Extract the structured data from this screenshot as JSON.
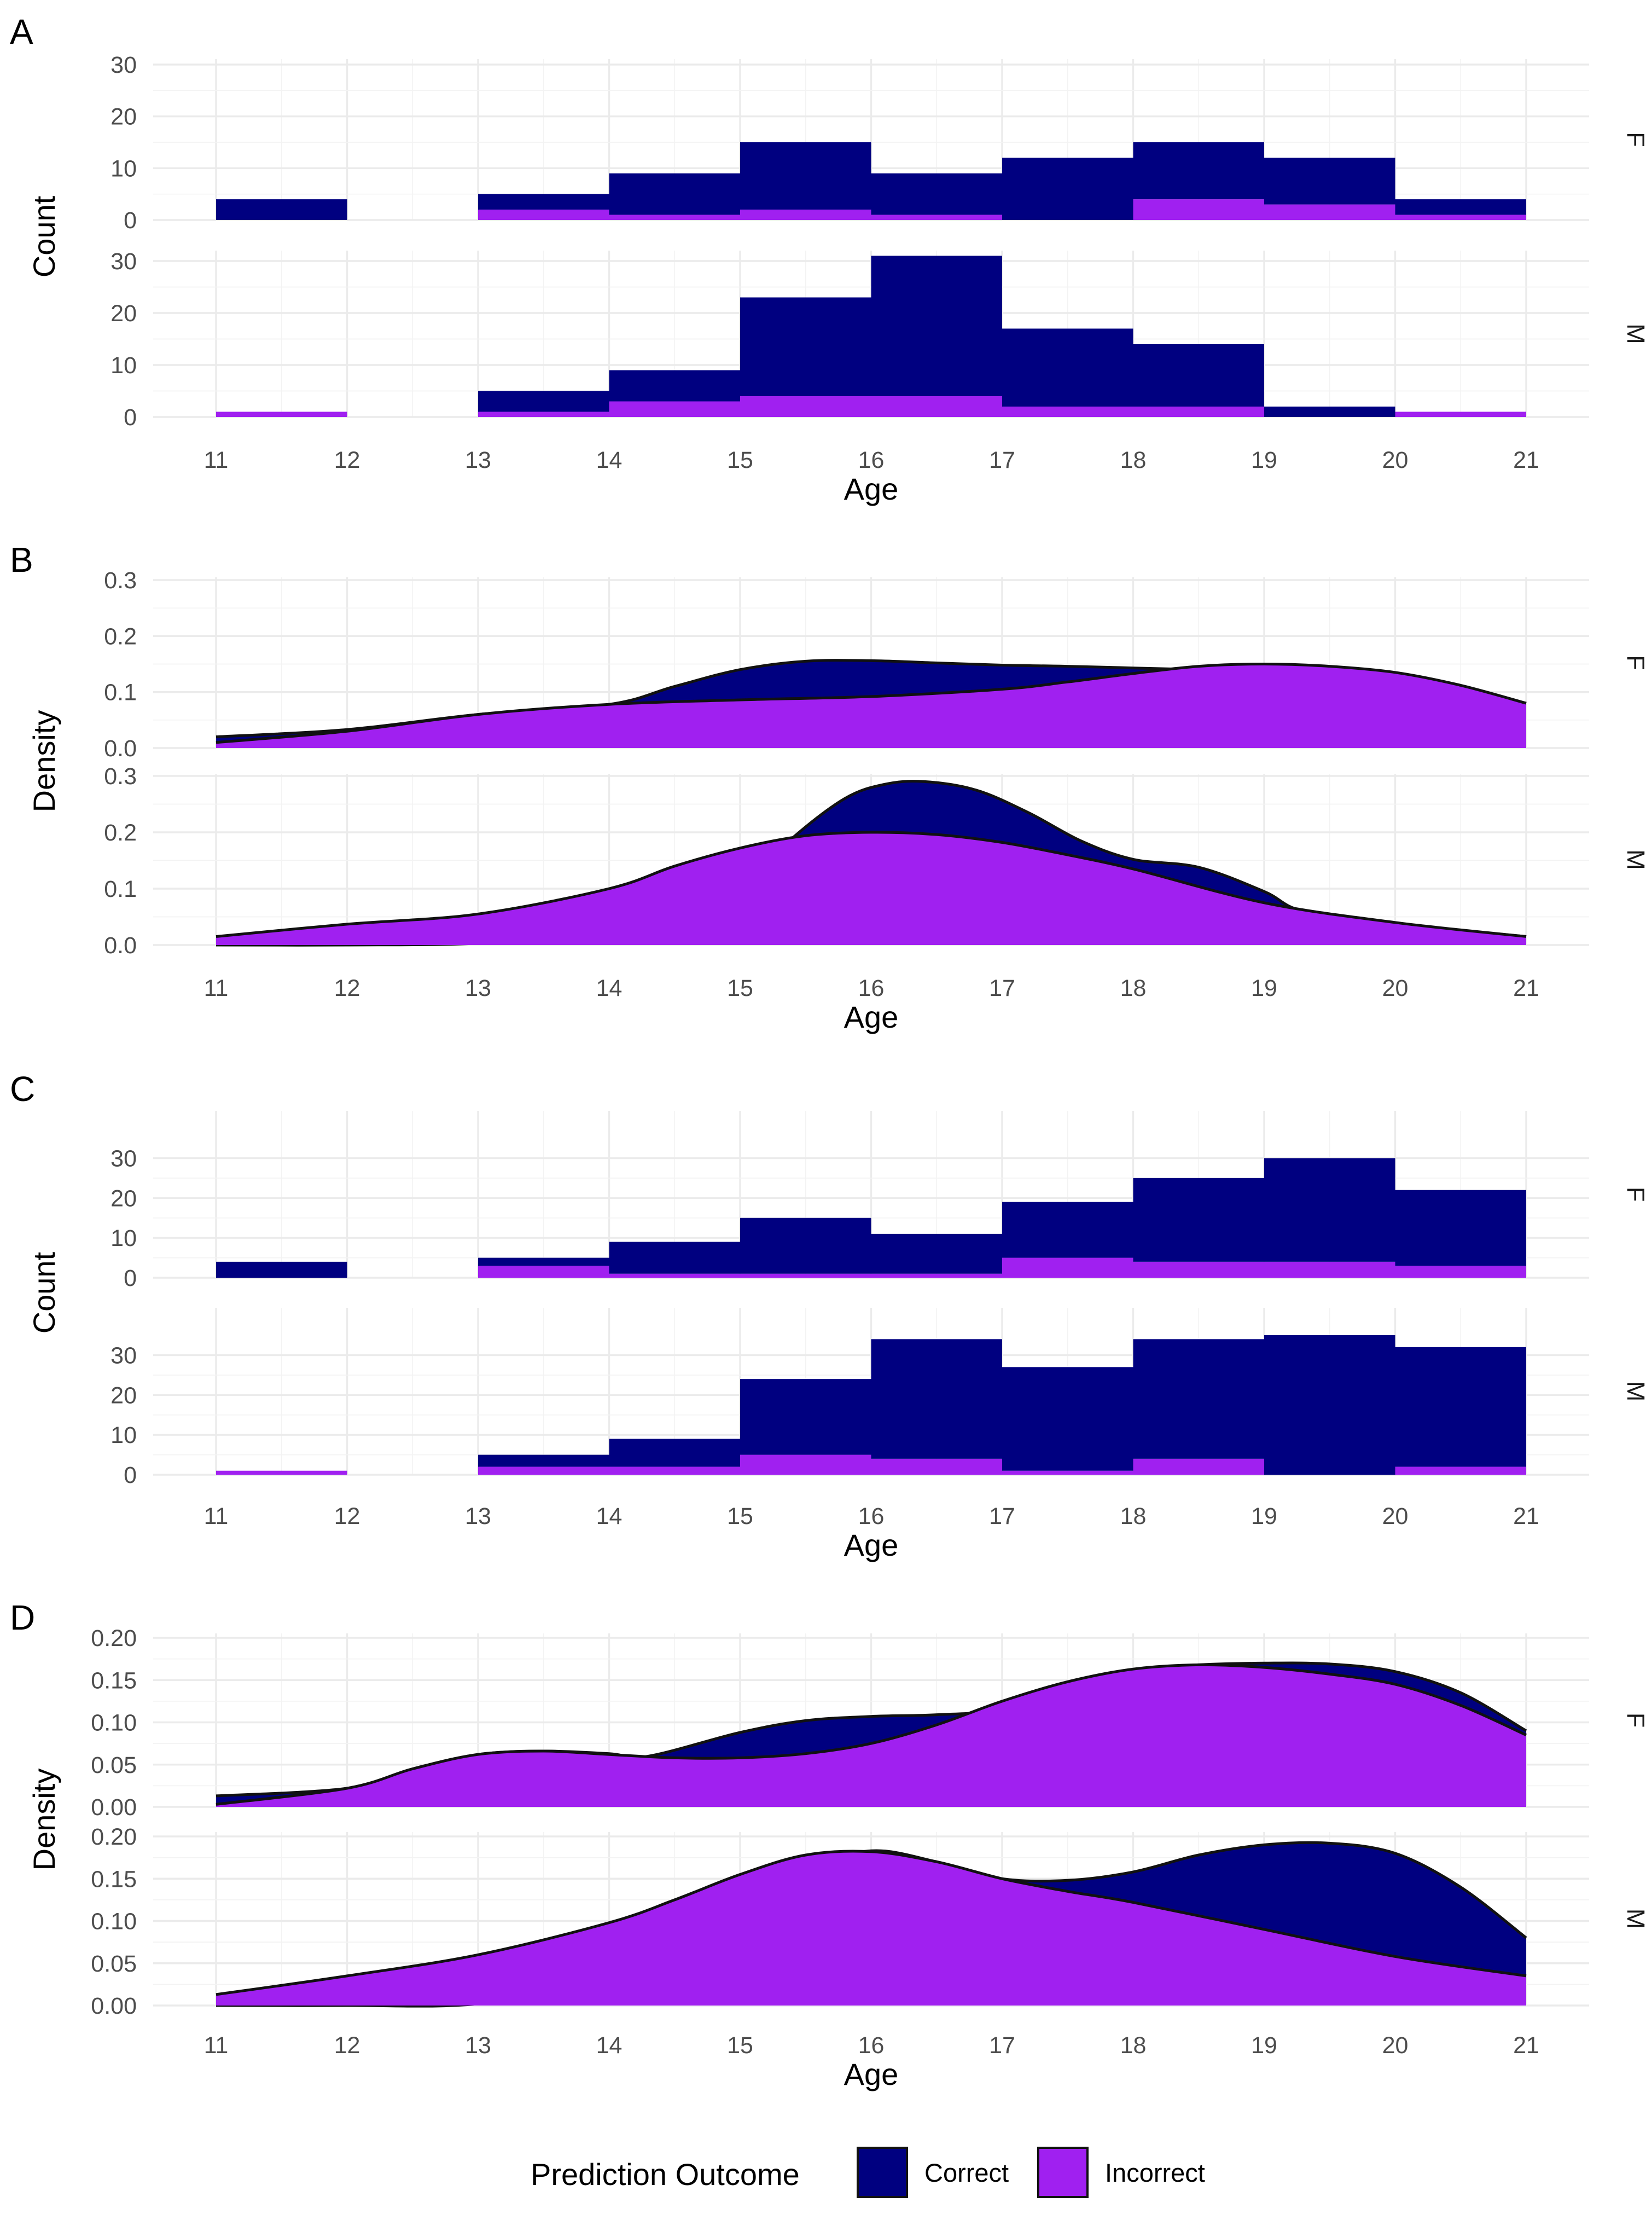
{
  "colors": {
    "correct": "#000080",
    "incorrect": "#a020f0",
    "outline": "#111111"
  },
  "legend": {
    "title": "Prediction Outcome",
    "items": [
      {
        "label": "Correct",
        "color": "#000080"
      },
      {
        "label": "Incorrect",
        "color": "#a020f0"
      }
    ]
  },
  "chart_data": [
    {
      "panel": "A",
      "type": "histogram-stacked",
      "xlabel": "Age",
      "ylabel": "Count",
      "xlim": [
        11,
        21
      ],
      "xticks": [
        11,
        12,
        13,
        14,
        15,
        16,
        17,
        18,
        19,
        20,
        21
      ],
      "bin_edges": [
        11,
        12,
        13,
        14,
        15,
        16,
        17,
        18,
        19,
        20,
        21
      ],
      "facets": [
        {
          "label": "F",
          "ylim": [
            0,
            30
          ],
          "yticks": [
            "0",
            "10",
            "20",
            "30"
          ],
          "series": [
            {
              "name": "Correct",
              "values": [
                4,
                0,
                3,
                8,
                13,
                8,
                12,
                11,
                9,
                3
              ]
            },
            {
              "name": "Incorrect",
              "values": [
                0,
                0,
                2,
                1,
                2,
                1,
                0,
                4,
                3,
                1
              ]
            }
          ]
        },
        {
          "label": "M",
          "ylim": [
            0,
            30
          ],
          "yticks": [
            "0",
            "10",
            "20",
            "30"
          ],
          "series": [
            {
              "name": "Correct",
              "values": [
                0,
                0,
                4,
                6,
                19,
                27,
                15,
                12,
                2,
                0
              ]
            },
            {
              "name": "Incorrect",
              "values": [
                1,
                0,
                1,
                3,
                4,
                4,
                2,
                2,
                0,
                1
              ]
            }
          ]
        }
      ]
    },
    {
      "panel": "B",
      "type": "area-density",
      "xlabel": "Age",
      "ylabel": "Density",
      "xlim": [
        11,
        21
      ],
      "xticks": [
        11,
        12,
        13,
        14,
        15,
        16,
        17,
        18,
        19,
        20,
        21
      ],
      "facets": [
        {
          "label": "F",
          "ylim": [
            0,
            0.3
          ],
          "yticks": [
            "0.0",
            "0.1",
            "0.2",
            "0.3"
          ],
          "series": [
            {
              "name": "Correct",
              "x": [
                11,
                12,
                13,
                14,
                14.5,
                15,
                15.5,
                16,
                16.5,
                17,
                17.5,
                18,
                18.5,
                19,
                20,
                21
              ],
              "values": [
                0.02,
                0.033,
                0.06,
                0.078,
                0.11,
                0.14,
                0.155,
                0.156,
                0.152,
                0.148,
                0.146,
                0.143,
                0.14,
                0.137,
                0.125,
                0.08
              ]
            },
            {
              "name": "Incorrect",
              "x": [
                11,
                12,
                13,
                14,
                15,
                16,
                17,
                17.5,
                18,
                18.5,
                19,
                19.5,
                20,
                20.5,
                21
              ],
              "values": [
                0.01,
                0.03,
                0.06,
                0.078,
                0.086,
                0.092,
                0.105,
                0.118,
                0.133,
                0.146,
                0.15,
                0.146,
                0.135,
                0.112,
                0.08
              ]
            }
          ]
        },
        {
          "label": "M",
          "ylim": [
            0,
            0.3
          ],
          "yticks": [
            "0.0",
            "0.1",
            "0.2",
            "0.3"
          ],
          "series": [
            {
              "name": "Correct",
              "x": [
                11,
                12,
                13,
                14,
                15,
                15.4,
                15.8,
                16.1,
                16.4,
                16.8,
                17.2,
                17.6,
                18,
                18.5,
                19,
                19.3,
                20,
                21
              ],
              "values": [
                0,
                0,
                0.003,
                0.02,
                0.1,
                0.19,
                0.26,
                0.285,
                0.29,
                0.275,
                0.235,
                0.185,
                0.152,
                0.138,
                0.095,
                0.06,
                0.038,
                0.015
              ]
            },
            {
              "name": "Incorrect",
              "x": [
                11,
                12,
                13,
                14,
                14.5,
                15,
                15.5,
                16,
                16.5,
                17,
                17.5,
                18,
                19,
                20,
                21
              ],
              "values": [
                0.015,
                0.037,
                0.055,
                0.1,
                0.14,
                0.172,
                0.194,
                0.2,
                0.196,
                0.182,
                0.16,
                0.135,
                0.075,
                0.04,
                0.015
              ]
            }
          ]
        }
      ]
    },
    {
      "panel": "C",
      "type": "histogram-stacked",
      "xlabel": "Age",
      "ylabel": "Count",
      "xlim": [
        11,
        21
      ],
      "xticks": [
        11,
        12,
        13,
        14,
        15,
        16,
        17,
        18,
        19,
        20,
        21
      ],
      "bin_edges": [
        11,
        12,
        13,
        14,
        15,
        16,
        17,
        18,
        19,
        20,
        21
      ],
      "facets": [
        {
          "label": "F",
          "ylim": [
            0,
            35
          ],
          "yticks": [
            "0",
            "10",
            "20",
            "30"
          ],
          "series": [
            {
              "name": "Correct",
              "values": [
                4,
                0,
                2,
                8,
                14,
                10,
                14,
                21,
                26,
                19
              ]
            },
            {
              "name": "Incorrect",
              "values": [
                0,
                0,
                3,
                1,
                1,
                1,
                5,
                4,
                4,
                3
              ]
            }
          ]
        },
        {
          "label": "M",
          "ylim": [
            0,
            35
          ],
          "yticks": [
            "0",
            "10",
            "20",
            "30"
          ],
          "series": [
            {
              "name": "Correct",
              "values": [
                0,
                0,
                3,
                7,
                19,
                30,
                26,
                30,
                35,
                30
              ]
            },
            {
              "name": "Incorrect",
              "values": [
                1,
                0,
                2,
                2,
                5,
                4,
                1,
                4,
                0,
                2
              ]
            }
          ]
        }
      ]
    },
    {
      "panel": "D",
      "type": "area-density",
      "xlabel": "Age",
      "ylabel": "Density",
      "xlim": [
        11,
        21
      ],
      "xticks": [
        11,
        12,
        13,
        14,
        15,
        16,
        17,
        18,
        19,
        20,
        21
      ],
      "facets": [
        {
          "label": "F",
          "ylim": [
            0,
            0.2
          ],
          "yticks": [
            "0.00",
            "0.05",
            "0.10",
            "0.15",
            "0.20"
          ],
          "series": [
            {
              "name": "Correct",
              "x": [
                11,
                12,
                12.5,
                13,
                13.5,
                14,
                14.3,
                15,
                15.5,
                16,
                16.5,
                17,
                17.5,
                18,
                18.5,
                19,
                19.5,
                20,
                20.5,
                21
              ],
              "values": [
                0.013,
                0.022,
                0.045,
                0.062,
                0.066,
                0.063,
                0.06,
                0.088,
                0.102,
                0.107,
                0.109,
                0.115,
                0.14,
                0.162,
                0.168,
                0.17,
                0.169,
                0.16,
                0.135,
                0.09
              ]
            },
            {
              "name": "Incorrect",
              "x": [
                11,
                12,
                12.5,
                13,
                13.5,
                14,
                14.5,
                15,
                15.5,
                16,
                16.5,
                17,
                17.5,
                18,
                18.5,
                19,
                19.5,
                20,
                20.5,
                21
              ],
              "values": [
                0.003,
                0.022,
                0.045,
                0.062,
                0.066,
                0.062,
                0.058,
                0.058,
                0.063,
                0.075,
                0.097,
                0.125,
                0.148,
                0.163,
                0.168,
                0.165,
                0.157,
                0.145,
                0.12,
                0.085
              ]
            }
          ]
        },
        {
          "label": "M",
          "ylim": [
            0,
            0.2
          ],
          "yticks": [
            "0.00",
            "0.05",
            "0.10",
            "0.15",
            "0.20"
          ],
          "series": [
            {
              "name": "Correct",
              "x": [
                11,
                12,
                13,
                14,
                15,
                15.5,
                16,
                16.5,
                17,
                17.5,
                18,
                18.5,
                19,
                19.5,
                20,
                20.5,
                21
              ],
              "values": [
                0,
                0,
                0.002,
                0.03,
                0.11,
                0.16,
                0.183,
                0.17,
                0.15,
                0.148,
                0.158,
                0.178,
                0.19,
                0.192,
                0.18,
                0.14,
                0.08
              ]
            },
            {
              "name": "Incorrect",
              "x": [
                11,
                12,
                13,
                14,
                14.5,
                15,
                15.5,
                16,
                16.5,
                17,
                17.5,
                18,
                19,
                20,
                21
              ],
              "values": [
                0.013,
                0.035,
                0.06,
                0.098,
                0.125,
                0.155,
                0.178,
                0.182,
                0.17,
                0.15,
                0.135,
                0.122,
                0.09,
                0.058,
                0.035
              ]
            }
          ]
        }
      ]
    }
  ]
}
